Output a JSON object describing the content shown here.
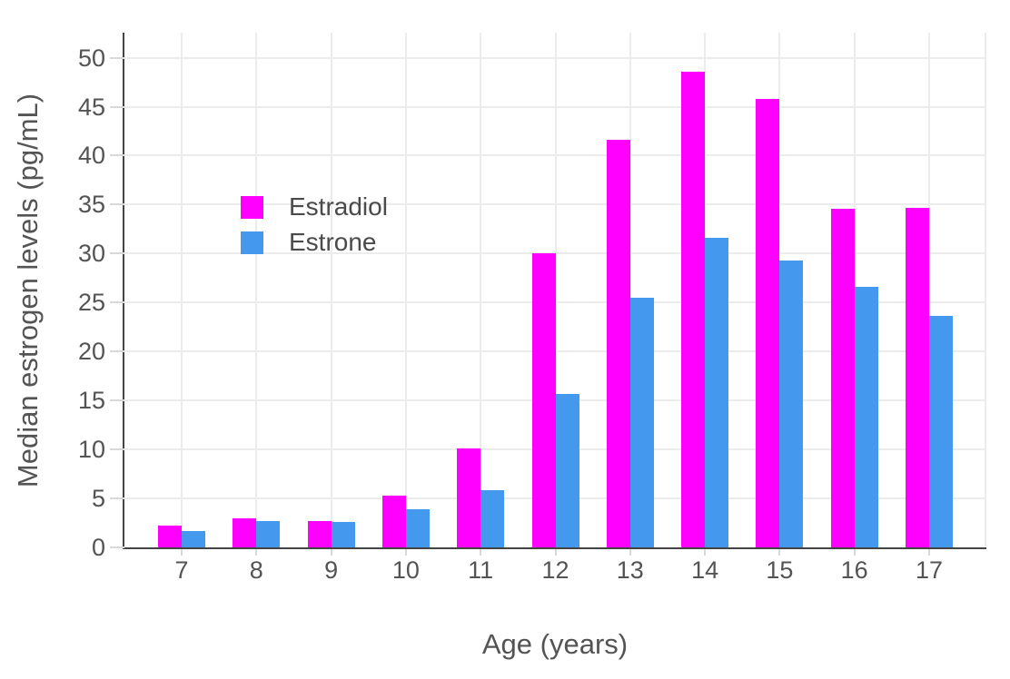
{
  "chart_data": {
    "type": "bar",
    "title": "",
    "xlabel": "Age (years)",
    "ylabel": "Median estrogen levels (pg/mL)",
    "categories": [
      "7",
      "8",
      "9",
      "10",
      "11",
      "12",
      "13",
      "14",
      "15",
      "16",
      "17"
    ],
    "series": [
      {
        "name": "Estradiol",
        "color": "#ff00ff",
        "values": [
          2.2,
          3.0,
          2.7,
          5.3,
          10.1,
          30.0,
          41.6,
          48.6,
          45.8,
          34.6,
          34.7
        ]
      },
      {
        "name": "Estrone",
        "color": "#4499ee",
        "values": [
          1.7,
          2.7,
          2.6,
          3.9,
          5.8,
          15.7,
          25.5,
          31.6,
          29.3,
          26.6,
          23.6
        ]
      }
    ],
    "ylim": [
      0,
      52.56
    ],
    "yticks": [
      0,
      5,
      10,
      15,
      20,
      25,
      30,
      35,
      40,
      45,
      50
    ],
    "grid": true,
    "legend_position": "inside-top-left",
    "axis_color": "#444444",
    "grid_color": "#ececec",
    "tick_color": "#d9d9d9",
    "text_color": "#545454",
    "background_color": "#ffffff"
  }
}
